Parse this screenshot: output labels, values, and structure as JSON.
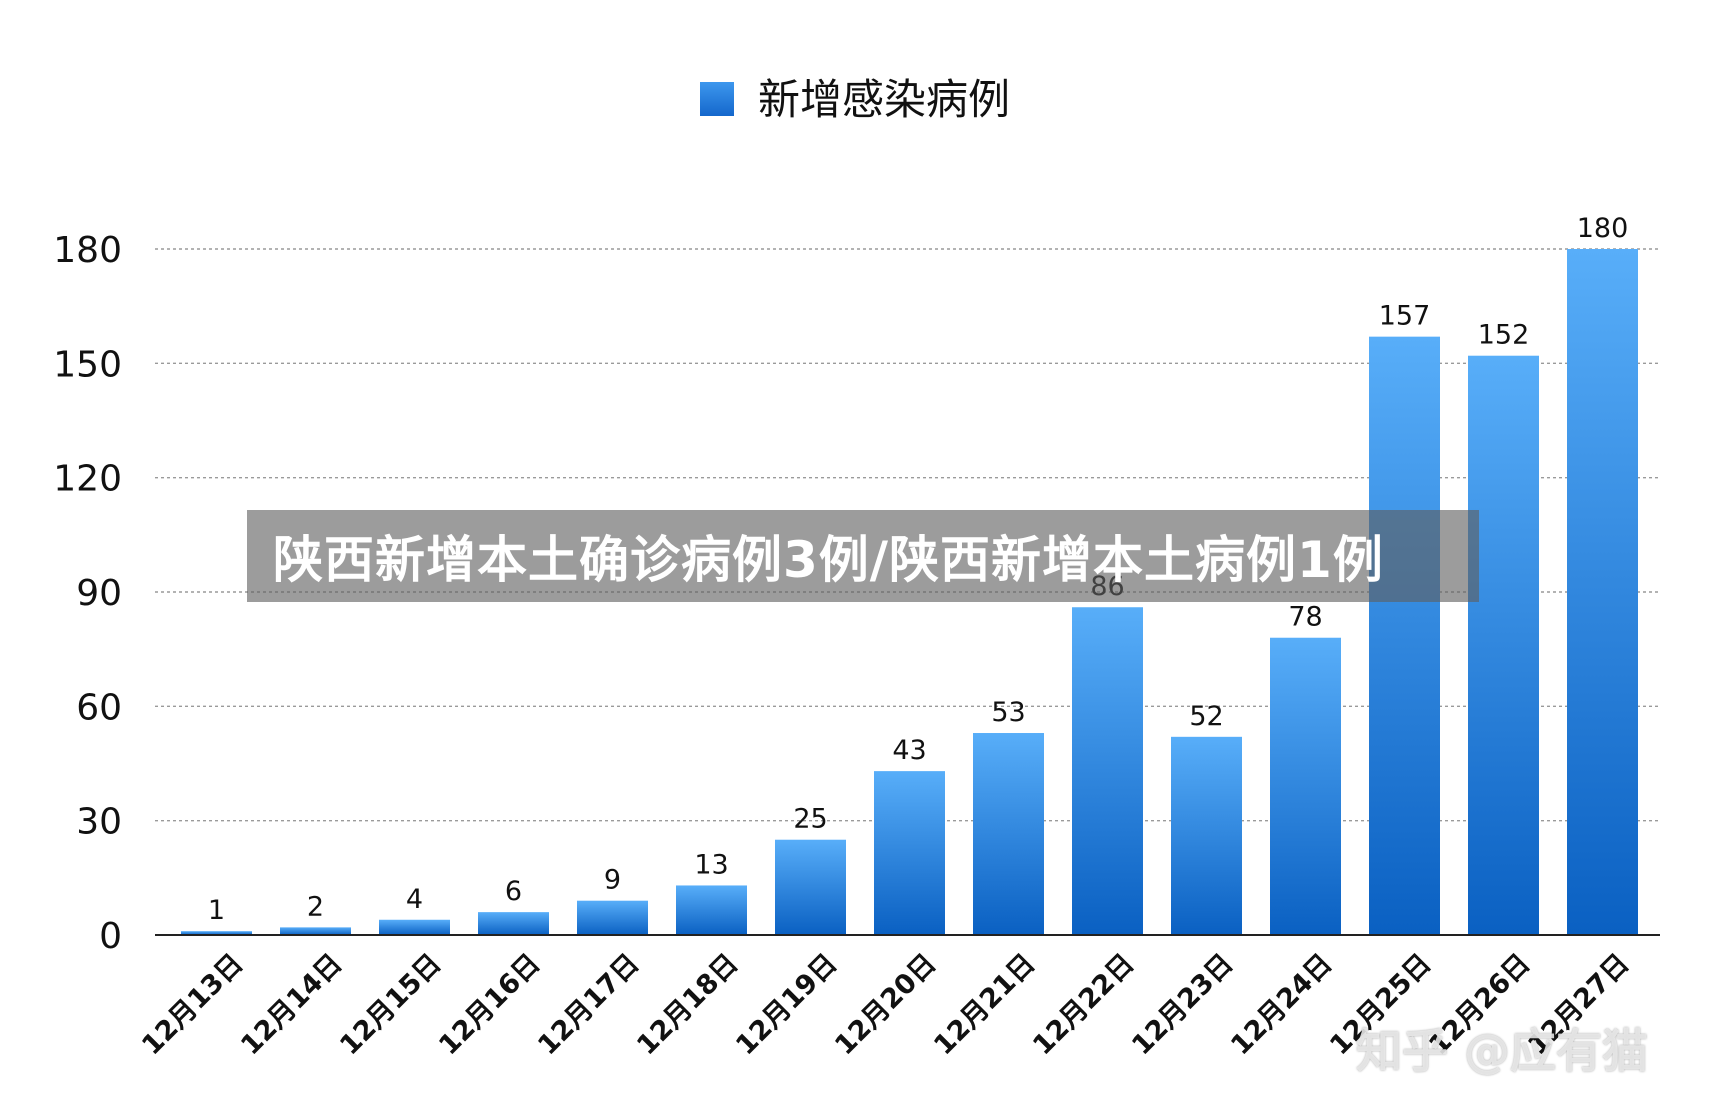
{
  "banner": {
    "title": "陕西新增本土确诊病例3例/陕西新增本土病例1例"
  },
  "watermark": {
    "text": "知乎 @应有猫"
  },
  "colors": {
    "bar_top": "#58aef9",
    "bar_bottom": "#0a60c2",
    "legend": "#1f7ee0"
  },
  "chart_data": {
    "type": "bar",
    "categories": [
      "12月13日",
      "12月14日",
      "12月15日",
      "12月16日",
      "12月17日",
      "12月18日",
      "12月19日",
      "12月20日",
      "12月21日",
      "12月22日",
      "12月23日",
      "12月24日",
      "12月25日",
      "12月26日",
      "12月27日"
    ],
    "series": [
      {
        "name": "新增感染病例",
        "values": [
          1,
          2,
          4,
          6,
          9,
          13,
          25,
          43,
          53,
          86,
          52,
          78,
          157,
          152,
          180
        ]
      }
    ],
    "yticks": [
      "0",
      "30",
      "60",
      "90",
      "120",
      "150",
      "180"
    ],
    "ylim": [
      0,
      180
    ],
    "grid": true,
    "legend_position": "top-center"
  }
}
